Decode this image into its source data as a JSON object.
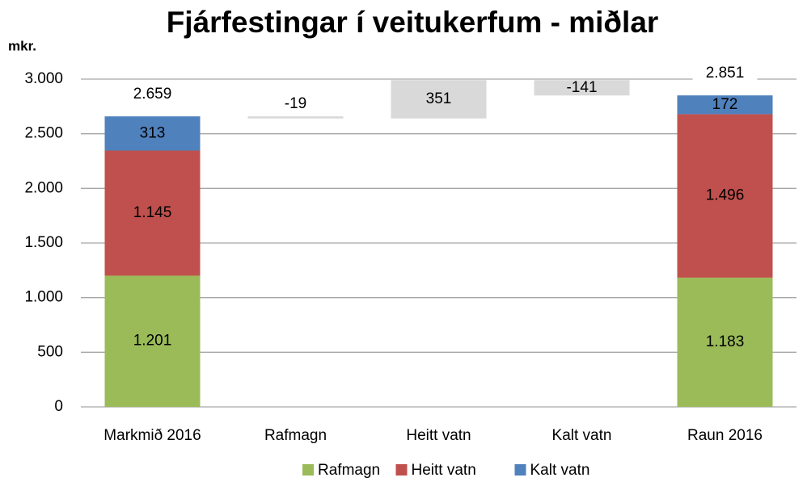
{
  "chart_data": {
    "type": "waterfall",
    "title": "Fjárfestingar í veitukerfum - miðlar",
    "y_axis_label": "mkr.",
    "categories": [
      "Markmið 2016",
      "Rafmagn",
      "Heitt vatn",
      "Kalt vatn",
      "Raun 2016"
    ],
    "series": [
      {
        "name": "Rafmagn",
        "color": "#9bbb59",
        "values": [
          1201,
          null,
          null,
          null,
          1183
        ],
        "value_labels": [
          "1.201",
          null,
          null,
          null,
          "1.183"
        ]
      },
      {
        "name": "Heitt vatn",
        "color": "#c0504d",
        "values": [
          1145,
          null,
          null,
          null,
          1496
        ],
        "value_labels": [
          "1.145",
          null,
          null,
          null,
          "1.496"
        ]
      },
      {
        "name": "Kalt vatn",
        "color": "#4f81bd",
        "values": [
          313,
          null,
          null,
          null,
          172
        ],
        "value_labels": [
          "313",
          null,
          null,
          null,
          "172"
        ]
      }
    ],
    "totals": {
      "values": [
        2659,
        null,
        null,
        null,
        2851
      ],
      "value_labels": [
        "2.659",
        null,
        null,
        null,
        "2.851"
      ]
    },
    "changes": {
      "color": "#d9d9d9",
      "values": [
        null,
        -19,
        351,
        -141,
        null
      ]
    },
    "ylim": [
      0,
      3000
    ],
    "yticks": [
      0,
      500,
      {
        "value": 1000,
        "label": "1.000"
      },
      {
        "value": 1500,
        "label": "1.500"
      },
      {
        "value": 2000,
        "label": "2.000"
      },
      {
        "value": 2500,
        "label": "2.500"
      },
      {
        "value": 3000,
        "label": "3.000"
      }
    ],
    "grid": true,
    "legend": "bottom"
  }
}
